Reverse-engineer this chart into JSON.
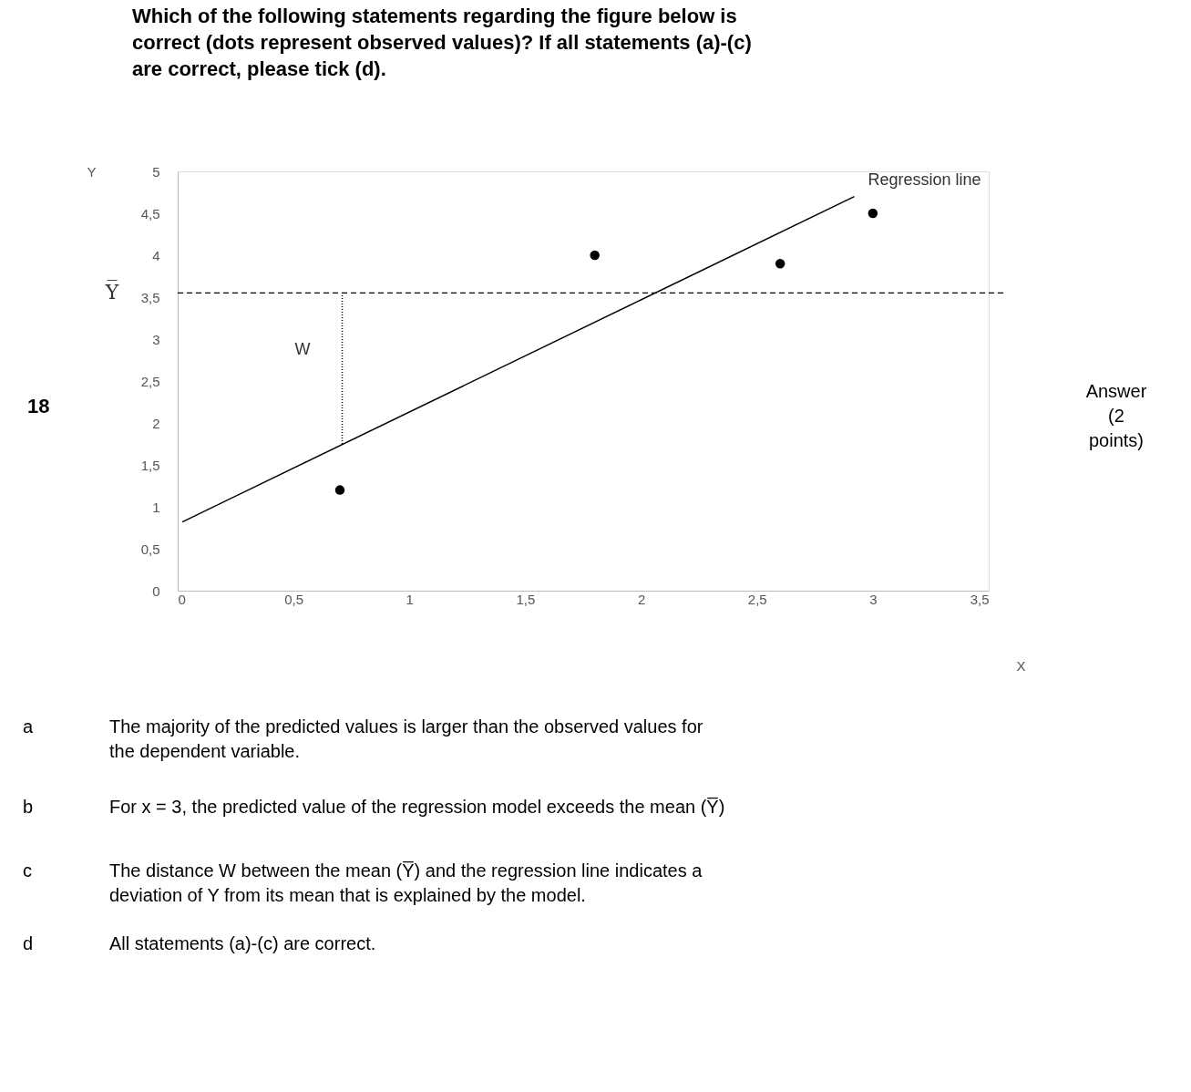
{
  "chart_data": {
    "type": "scatter",
    "title": "Which of the following statements regarding the figure below is correct (dots represent observed values)? If all statements (a)-(c) are correct, please tick (d).",
    "xlabel": "X",
    "ylabel": "Y",
    "xlim": [
      0,
      3.5
    ],
    "ylim": [
      0,
      5
    ],
    "xticks": [
      0,
      {
        "value": 0.5,
        "label": "0,5"
      },
      1,
      {
        "value": 1.5,
        "label": "1,5"
      },
      2,
      {
        "value": 2.5,
        "label": "2,5"
      },
      3,
      {
        "value": 3.5,
        "label": "3,5"
      }
    ],
    "yticks": [
      0,
      {
        "value": 0.5,
        "label": "0,5"
      },
      1,
      {
        "value": 1.5,
        "label": "1,5"
      },
      2,
      {
        "value": 2.5,
        "label": "2,5"
      },
      3,
      {
        "value": 3.5,
        "label": "3,5"
      },
      4,
      {
        "value": 4.5,
        "label": "4,5"
      },
      5
    ],
    "grid": false,
    "legend": false,
    "marker": "circle",
    "series": [
      {
        "color": "#000000",
        "x": [
          0.7,
          1.8,
          2.6,
          3.0
        ],
        "values": [
          1.2,
          4.0,
          3.9,
          4.5
        ]
      },
      {
        "type": "line",
        "name": "Regression line",
        "color": "#000000",
        "line_style": "solid",
        "marker": "none",
        "x": [
          0.02,
          2.92
        ],
        "values": [
          0.82,
          4.7
        ]
      },
      {
        "type": "line",
        "color": "#000000",
        "line_style": "dotted",
        "marker": "none",
        "x": [
          0.71,
          0.71
        ],
        "values": [
          1.75,
          3.55
        ]
      }
    ],
    "ref_lines": [
      {
        "axis": "y",
        "value": 3.55,
        "label": "Y̅",
        "line_style": "dashed",
        "color": "#000000"
      }
    ],
    "annotations": [
      {
        "text": "W",
        "x": 0.71,
        "y": 2.65
      },
      "18",
      "Answer (2 points)",
      "a",
      "The majority of the predicted values is larger than the observed values for the dependent variable.",
      "b",
      "For x = 3, the predicted value of the regression model exceeds the mean (Y̅)",
      "c",
      "The distance W between the mean (Y̅) and the regression line indicates a deviation of Y from its mean that is explained by the model.",
      "d",
      "All statements (a)-(c) are correct."
    ]
  }
}
